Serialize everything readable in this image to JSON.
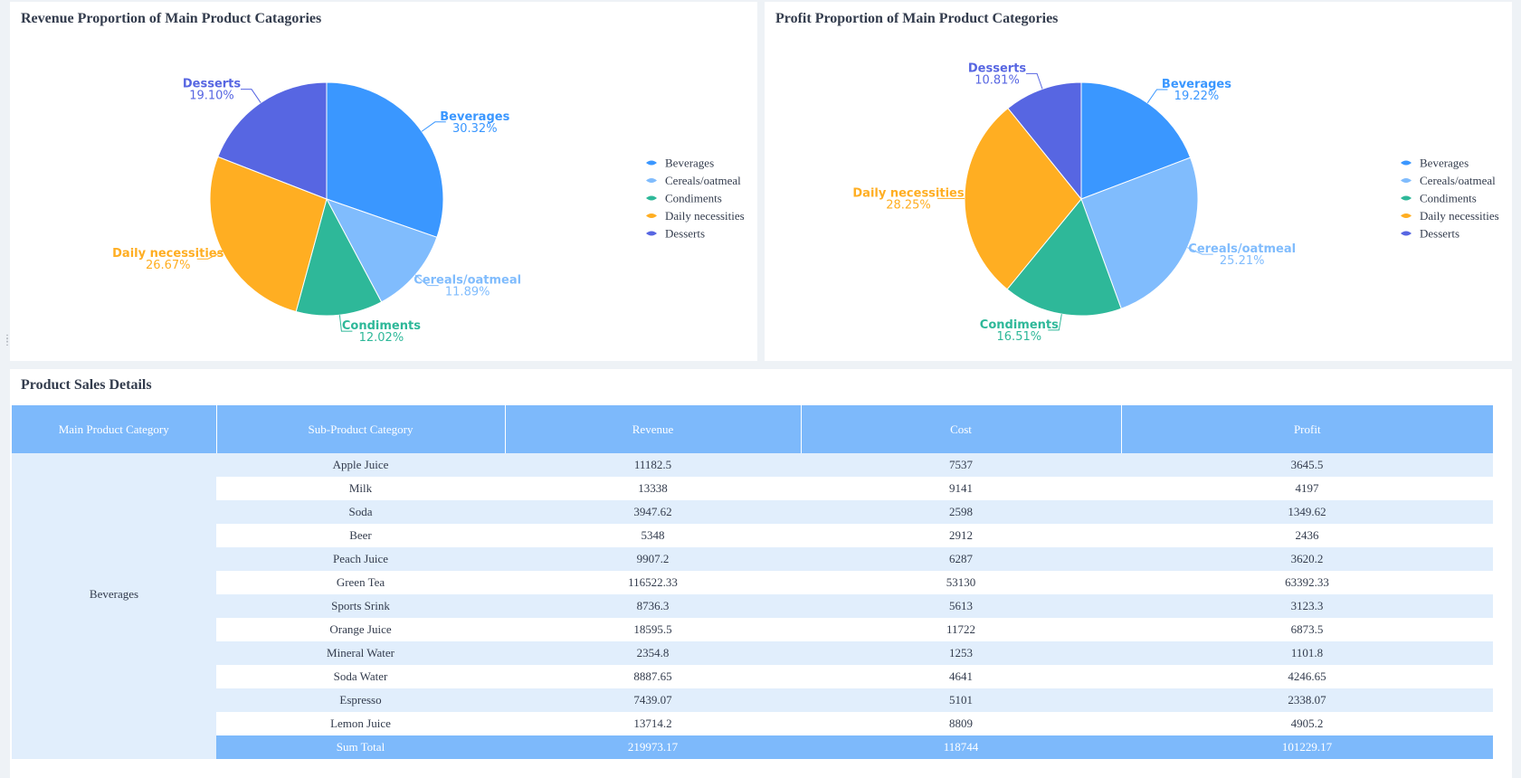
{
  "colors": {
    "Beverages": "#3a97ff",
    "Cereals/oatmeal": "#80bcfd",
    "Condiments": "#2eb899",
    "Daily necessities": "#ffae22",
    "Desserts": "#5766e2"
  },
  "revenue_panel": {
    "title": "Revenue Proportion of Main Product Catagories"
  },
  "profit_panel": {
    "title": "Profit Proportion of Main Product Categories"
  },
  "legend": [
    "Beverages",
    "Cereals/oatmeal",
    "Condiments",
    "Daily necessities",
    "Desserts"
  ],
  "chart_data": [
    {
      "type": "pie",
      "title": "Revenue Proportion of Main Product Catagories",
      "categories": [
        "Beverages",
        "Cereals/oatmeal",
        "Condiments",
        "Daily necessities",
        "Desserts"
      ],
      "values": [
        30.32,
        11.89,
        12.02,
        26.67,
        19.1
      ],
      "value_labels": [
        "30.32%",
        "11.89%",
        "12.02%",
        "26.67%",
        "19.10%"
      ],
      "legend": "right"
    },
    {
      "type": "pie",
      "title": "Profit Proportion of Main Product Categories",
      "categories": [
        "Beverages",
        "Cereals/oatmeal",
        "Condiments",
        "Daily necessities",
        "Desserts"
      ],
      "values": [
        19.22,
        25.21,
        16.51,
        28.25,
        10.81
      ],
      "value_labels": [
        "19.22%",
        "25.21%",
        "16.51%",
        "28.25%",
        "10.81%"
      ],
      "legend": "right"
    }
  ],
  "table": {
    "title": "Product Sales Details",
    "headers": [
      "Main Product Category",
      "Sub-Product Category",
      "Revenue",
      "Cost",
      "Profit"
    ],
    "main_category": "Beverages",
    "rows": [
      [
        "Apple Juice",
        "11182.5",
        "7537",
        "3645.5"
      ],
      [
        "Milk",
        "13338",
        "9141",
        "4197"
      ],
      [
        "Soda",
        "3947.62",
        "2598",
        "1349.62"
      ],
      [
        "Beer",
        "5348",
        "2912",
        "2436"
      ],
      [
        "Peach Juice",
        "9907.2",
        "6287",
        "3620.2"
      ],
      [
        "Green Tea",
        "116522.33",
        "53130",
        "63392.33"
      ],
      [
        "Sports Srink",
        "8736.3",
        "5613",
        "3123.3"
      ],
      [
        "Orange Juice",
        "18595.5",
        "11722",
        "6873.5"
      ],
      [
        "Mineral Water",
        "2354.8",
        "1253",
        "1101.8"
      ],
      [
        "Soda Water",
        "8887.65",
        "4641",
        "4246.65"
      ],
      [
        "Espresso",
        "7439.07",
        "5101",
        "2338.07"
      ],
      [
        "Lemon Juice",
        "13714.2",
        "8809",
        "4905.2"
      ]
    ],
    "total": [
      "Sum Total",
      "219973.17",
      "118744",
      "101229.17"
    ]
  }
}
